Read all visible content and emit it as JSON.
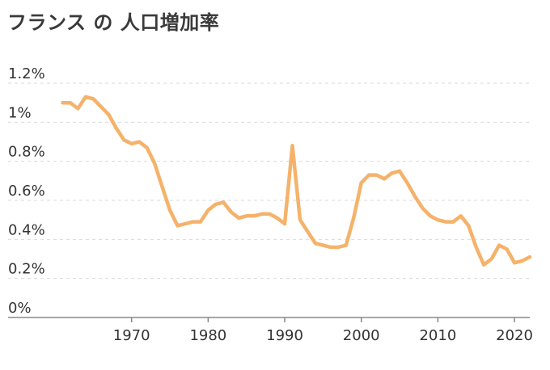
{
  "chart_data": {
    "type": "line",
    "title": "フランス の 人口増加率",
    "xlabel": "",
    "ylabel": "",
    "xlim": [
      1960,
      2022
    ],
    "ylim": [
      0,
      1.2
    ],
    "xticks": [
      1970,
      1980,
      1990,
      2000,
      2010,
      2020
    ],
    "yticks": [
      {
        "value": 0,
        "label": "0%"
      },
      {
        "value": 0.2,
        "label": "0.2%"
      },
      {
        "value": 0.4,
        "label": "0.4%"
      },
      {
        "value": 0.6,
        "label": "0.6%"
      },
      {
        "value": 0.8,
        "label": "0.8%"
      },
      {
        "value": 1.0,
        "label": "1%"
      },
      {
        "value": 1.2,
        "label": "1.2%"
      }
    ],
    "grid": "horizontal dashed",
    "line_color": "#f5b26b",
    "x": [
      1961,
      1962,
      1963,
      1964,
      1965,
      1966,
      1967,
      1968,
      1969,
      1970,
      1971,
      1972,
      1973,
      1974,
      1975,
      1976,
      1977,
      1978,
      1979,
      1980,
      1981,
      1982,
      1983,
      1984,
      1985,
      1986,
      1987,
      1988,
      1989,
      1990,
      1991,
      1992,
      1993,
      1994,
      1995,
      1996,
      1997,
      1998,
      1999,
      2000,
      2001,
      2002,
      2003,
      2004,
      2005,
      2006,
      2007,
      2008,
      2009,
      2010,
      2011,
      2012,
      2013,
      2014,
      2015,
      2016,
      2017,
      2018,
      2019,
      2020,
      2021,
      2022
    ],
    "series": [
      {
        "values": [
          1.1,
          1.1,
          1.07,
          1.13,
          1.12,
          1.08,
          1.04,
          0.97,
          0.91,
          0.89,
          0.9,
          0.87,
          0.79,
          0.67,
          0.55,
          0.47,
          0.48,
          0.49,
          0.49,
          0.55,
          0.58,
          0.59,
          0.54,
          0.51,
          0.52,
          0.52,
          0.53,
          0.53,
          0.51,
          0.48,
          0.88,
          0.5,
          0.44,
          0.38,
          0.37,
          0.36,
          0.36,
          0.37,
          0.51,
          0.69,
          0.73,
          0.73,
          0.71,
          0.74,
          0.75,
          0.69,
          0.62,
          0.56,
          0.52,
          0.5,
          0.49,
          0.49,
          0.52,
          0.47,
          0.36,
          0.27,
          0.3,
          0.37,
          0.35,
          0.28,
          0.29,
          0.31
        ]
      }
    ]
  }
}
